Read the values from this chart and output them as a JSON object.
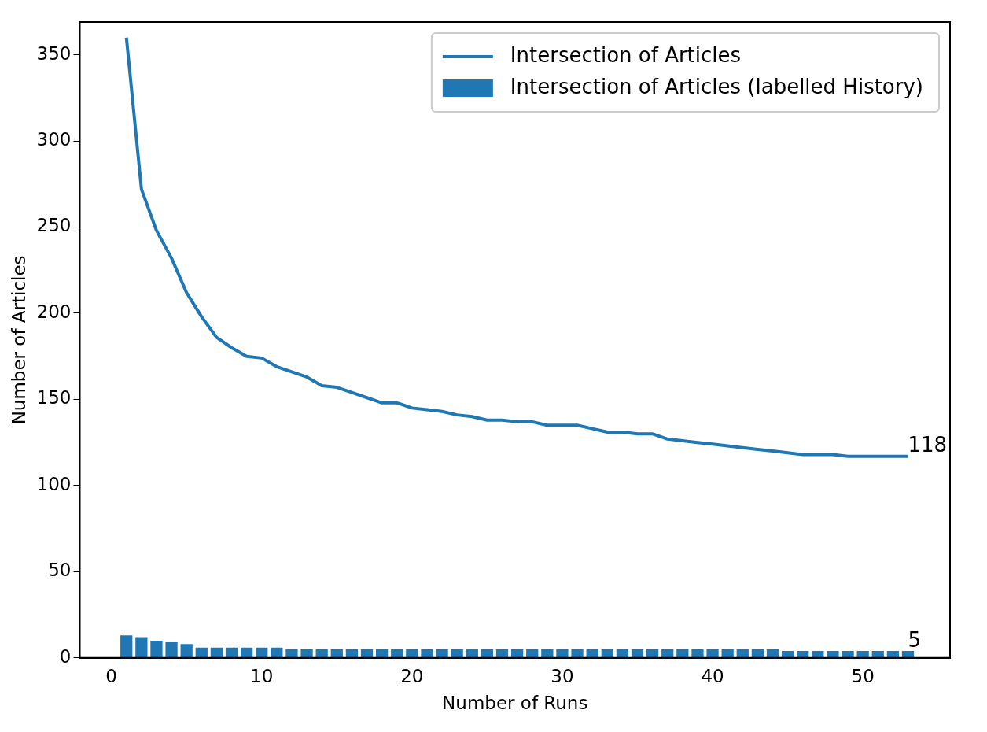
{
  "chart_data": {
    "type": "bar",
    "xlabel": "Number of Runs",
    "ylabel": "Number of Articles",
    "x": [
      1,
      2,
      3,
      4,
      5,
      6,
      7,
      8,
      9,
      10,
      11,
      12,
      13,
      14,
      15,
      16,
      17,
      18,
      19,
      20,
      21,
      22,
      23,
      24,
      25,
      26,
      27,
      28,
      29,
      30,
      31,
      32,
      33,
      34,
      35,
      36,
      37,
      38,
      39,
      40,
      41,
      42,
      43,
      44,
      45,
      46,
      47,
      48,
      49,
      50,
      51,
      52,
      53
    ],
    "xlim": [
      -2.1,
      55.8
    ],
    "xticks": [
      0,
      10,
      20,
      30,
      40,
      50
    ],
    "ylim": [
      0,
      369
    ],
    "yticks": [
      0,
      50,
      100,
      150,
      200,
      250,
      300,
      350
    ],
    "legend": "top right",
    "series": [
      {
        "name": "Intersection of Articles",
        "type": "line",
        "color": "#1f77b4",
        "values": [
          360,
          272,
          248,
          232,
          212,
          198,
          186,
          180,
          175,
          174,
          169,
          166,
          163,
          158,
          157,
          154,
          151,
          148,
          148,
          145,
          144,
          143,
          141,
          140,
          138,
          138,
          137,
          137,
          135,
          135,
          135,
          133,
          131,
          131,
          130,
          130,
          127,
          126,
          125,
          124,
          123,
          122,
          121,
          120,
          119,
          118,
          118,
          118,
          117,
          117,
          117,
          117,
          117
        ]
      },
      {
        "name": "Intersection of Articles (labelled History)",
        "color": "#1f77b4",
        "values": [
          13,
          12,
          10,
          9,
          8,
          6,
          6,
          6,
          6,
          6,
          6,
          5,
          5,
          5,
          5,
          5,
          5,
          5,
          5,
          5,
          5,
          5,
          5,
          5,
          5,
          5,
          5,
          5,
          5,
          5,
          5,
          5,
          5,
          5,
          5,
          5,
          5,
          5,
          5,
          5,
          5,
          5,
          5,
          5,
          4,
          4,
          4,
          4,
          4,
          4,
          4,
          4,
          4
        ]
      }
    ],
    "annotations": [
      {
        "text": "118",
        "x": 53,
        "y": 118
      },
      {
        "text": "5",
        "x": 53,
        "y": 5
      }
    ]
  }
}
